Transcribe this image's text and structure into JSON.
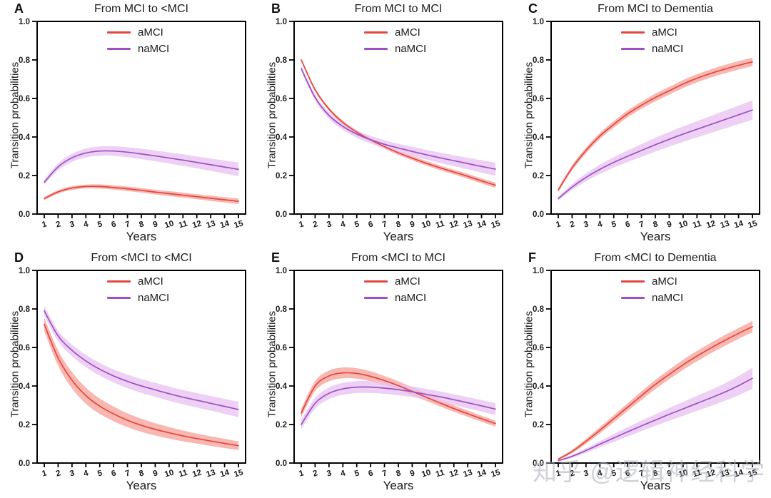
{
  "page": {
    "background": "#ffffff",
    "watermark": "知乎 @逻辑神经科学"
  },
  "colors": {
    "aMCI_line": "#e2473d",
    "aMCI_band": "#f6a39b",
    "naMCI_line": "#9a52c4",
    "naMCI_band": "#e9c3f1",
    "axis": "#000000",
    "text": "#1c1c1c"
  },
  "axes": {
    "x_values": [
      1,
      2,
      3,
      4,
      5,
      6,
      7,
      8,
      9,
      10,
      11,
      12,
      13,
      14,
      15
    ],
    "xtick_labels": [
      "1",
      "2",
      "3",
      "4",
      "5",
      "6",
      "7",
      "8",
      "9",
      "10",
      "11",
      "12",
      "13",
      "14",
      "15"
    ],
    "ytick_values": [
      0.0,
      0.2,
      0.4,
      0.6,
      0.8,
      1.0
    ],
    "ytick_labels": [
      "0.0",
      "0.2",
      "0.4",
      "0.6",
      "0.8",
      "1.0"
    ],
    "ylim": [
      0,
      1
    ],
    "grid": false,
    "legend_position": "top-center-inside",
    "frame": "full-box"
  },
  "chart_data": [
    {
      "type": "line",
      "panel_letter": "A",
      "title": "From MCI to <MCI",
      "xlabel": "Years",
      "ylabel": "Transition probabilities",
      "x": [
        1,
        2,
        3,
        4,
        5,
        6,
        7,
        8,
        9,
        10,
        11,
        12,
        13,
        14,
        15
      ],
      "ylim": [
        0,
        1
      ],
      "series": [
        {
          "name": "aMCI",
          "color_key": "aMCI",
          "values": [
            0.08,
            0.115,
            0.135,
            0.143,
            0.143,
            0.138,
            0.131,
            0.123,
            0.114,
            0.106,
            0.098,
            0.09,
            0.082,
            0.074,
            0.066
          ],
          "band": [
            0.008,
            0.009,
            0.01,
            0.01,
            0.011,
            0.011,
            0.012,
            0.012,
            0.012,
            0.013,
            0.013,
            0.013,
            0.014,
            0.014,
            0.015
          ]
        },
        {
          "name": "naMCI",
          "color_key": "naMCI",
          "values": [
            0.165,
            0.245,
            0.292,
            0.317,
            0.327,
            0.327,
            0.321,
            0.312,
            0.302,
            0.291,
            0.28,
            0.268,
            0.256,
            0.244,
            0.232
          ],
          "band": [
            0.013,
            0.018,
            0.021,
            0.023,
            0.024,
            0.025,
            0.026,
            0.027,
            0.028,
            0.029,
            0.03,
            0.031,
            0.032,
            0.034,
            0.036
          ]
        }
      ]
    },
    {
      "type": "line",
      "panel_letter": "B",
      "title": "From MCI to MCI",
      "xlabel": "Years",
      "ylabel": "Transition probabilities",
      "x": [
        1,
        2,
        3,
        4,
        5,
        6,
        7,
        8,
        9,
        10,
        11,
        12,
        13,
        14,
        15
      ],
      "ylim": [
        0,
        1
      ],
      "series": [
        {
          "name": "aMCI",
          "color_key": "aMCI",
          "values": [
            0.8,
            0.645,
            0.545,
            0.475,
            0.425,
            0.385,
            0.35,
            0.318,
            0.29,
            0.264,
            0.24,
            0.218,
            0.196,
            0.172,
            0.15
          ],
          "band": [
            0.008,
            0.009,
            0.009,
            0.01,
            0.01,
            0.01,
            0.011,
            0.011,
            0.011,
            0.012,
            0.012,
            0.012,
            0.013,
            0.013,
            0.014
          ]
        },
        {
          "name": "naMCI",
          "color_key": "naMCI",
          "values": [
            0.755,
            0.605,
            0.512,
            0.455,
            0.415,
            0.386,
            0.362,
            0.343,
            0.325,
            0.308,
            0.292,
            0.277,
            0.262,
            0.247,
            0.233
          ],
          "band": [
            0.012,
            0.015,
            0.017,
            0.018,
            0.019,
            0.02,
            0.021,
            0.022,
            0.024,
            0.025,
            0.027,
            0.028,
            0.03,
            0.032,
            0.034
          ]
        }
      ]
    },
    {
      "type": "line",
      "panel_letter": "C",
      "title": "From MCI to Dementia",
      "xlabel": "Years",
      "ylabel": "Transition probabilities",
      "x": [
        1,
        2,
        3,
        4,
        5,
        6,
        7,
        8,
        9,
        10,
        11,
        12,
        13,
        14,
        15
      ],
      "ylim": [
        0,
        1
      ],
      "series": [
        {
          "name": "aMCI",
          "color_key": "aMCI",
          "values": [
            0.125,
            0.24,
            0.33,
            0.405,
            0.465,
            0.52,
            0.565,
            0.605,
            0.64,
            0.675,
            0.705,
            0.73,
            0.752,
            0.772,
            0.79
          ],
          "band": [
            0.01,
            0.013,
            0.015,
            0.016,
            0.017,
            0.018,
            0.019,
            0.02,
            0.02,
            0.021,
            0.021,
            0.021,
            0.022,
            0.022,
            0.022
          ]
        },
        {
          "name": "naMCI",
          "color_key": "naMCI",
          "values": [
            0.08,
            0.14,
            0.19,
            0.232,
            0.268,
            0.3,
            0.33,
            0.36,
            0.388,
            0.415,
            0.44,
            0.465,
            0.49,
            0.515,
            0.54
          ],
          "band": [
            0.01,
            0.015,
            0.02,
            0.024,
            0.027,
            0.03,
            0.033,
            0.036,
            0.038,
            0.04,
            0.042,
            0.044,
            0.046,
            0.048,
            0.05
          ]
        }
      ]
    },
    {
      "type": "line",
      "panel_letter": "D",
      "title": "From <MCI to <MCI",
      "xlabel": "Years",
      "ylabel": "Transition probabilities",
      "x": [
        1,
        2,
        3,
        4,
        5,
        6,
        7,
        8,
        9,
        10,
        11,
        12,
        13,
        14,
        15
      ],
      "ylim": [
        0,
        1
      ],
      "series": [
        {
          "name": "aMCI",
          "color_key": "aMCI",
          "values": [
            0.72,
            0.545,
            0.43,
            0.35,
            0.295,
            0.255,
            0.222,
            0.196,
            0.175,
            0.157,
            0.141,
            0.127,
            0.114,
            0.102,
            0.09
          ],
          "band": [
            0.035,
            0.04,
            0.042,
            0.042,
            0.04,
            0.038,
            0.036,
            0.034,
            0.032,
            0.03,
            0.028,
            0.026,
            0.025,
            0.024,
            0.022
          ]
        },
        {
          "name": "naMCI",
          "color_key": "naMCI",
          "values": [
            0.79,
            0.66,
            0.585,
            0.53,
            0.487,
            0.452,
            0.424,
            0.4,
            0.38,
            0.36,
            0.342,
            0.326,
            0.31,
            0.294,
            0.278
          ],
          "band": [
            0.025,
            0.028,
            0.03,
            0.032,
            0.033,
            0.034,
            0.035,
            0.036,
            0.036,
            0.037,
            0.037,
            0.038,
            0.038,
            0.039,
            0.04
          ]
        }
      ]
    },
    {
      "type": "line",
      "panel_letter": "E",
      "title": "From <MCI to MCI",
      "xlabel": "Years",
      "ylabel": "Transition probabilities",
      "x": [
        1,
        2,
        3,
        4,
        5,
        6,
        7,
        8,
        9,
        10,
        11,
        12,
        13,
        14,
        15
      ],
      "ylim": [
        0,
        1
      ],
      "series": [
        {
          "name": "aMCI",
          "color_key": "aMCI",
          "values": [
            0.26,
            0.4,
            0.452,
            0.468,
            0.465,
            0.45,
            0.428,
            0.402,
            0.372,
            0.342,
            0.312,
            0.283,
            0.256,
            0.23,
            0.205
          ],
          "band": [
            0.022,
            0.026,
            0.028,
            0.028,
            0.027,
            0.026,
            0.024,
            0.022,
            0.021,
            0.019,
            0.018,
            0.017,
            0.016,
            0.016,
            0.016
          ]
        },
        {
          "name": "naMCI",
          "color_key": "naMCI",
          "values": [
            0.2,
            0.31,
            0.362,
            0.385,
            0.394,
            0.394,
            0.389,
            0.381,
            0.37,
            0.357,
            0.344,
            0.329,
            0.313,
            0.297,
            0.28
          ],
          "band": [
            0.025,
            0.028,
            0.03,
            0.031,
            0.031,
            0.031,
            0.03,
            0.029,
            0.028,
            0.028,
            0.028,
            0.028,
            0.029,
            0.03,
            0.031
          ]
        }
      ]
    },
    {
      "type": "line",
      "panel_letter": "F",
      "title": "From <MCI to Dementia",
      "xlabel": "Years",
      "ylabel": "Transition probabilities",
      "x": [
        1,
        2,
        3,
        4,
        5,
        6,
        7,
        8,
        9,
        10,
        11,
        12,
        13,
        14,
        15
      ],
      "ylim": [
        0,
        1
      ],
      "series": [
        {
          "name": "aMCI",
          "color_key": "aMCI",
          "values": [
            0.02,
            0.06,
            0.113,
            0.17,
            0.23,
            0.29,
            0.35,
            0.408,
            0.46,
            0.51,
            0.555,
            0.597,
            0.636,
            0.673,
            0.708
          ],
          "band": [
            0.005,
            0.009,
            0.013,
            0.016,
            0.018,
            0.02,
            0.022,
            0.024,
            0.025,
            0.026,
            0.027,
            0.027,
            0.028,
            0.028,
            0.029
          ]
        },
        {
          "name": "naMCI",
          "color_key": "naMCI",
          "values": [
            0.012,
            0.035,
            0.065,
            0.098,
            0.13,
            0.162,
            0.193,
            0.223,
            0.253,
            0.281,
            0.31,
            0.338,
            0.368,
            0.402,
            0.44
          ],
          "band": [
            0.004,
            0.008,
            0.012,
            0.016,
            0.02,
            0.024,
            0.027,
            0.03,
            0.033,
            0.036,
            0.039,
            0.042,
            0.045,
            0.05,
            0.055
          ]
        }
      ]
    }
  ]
}
